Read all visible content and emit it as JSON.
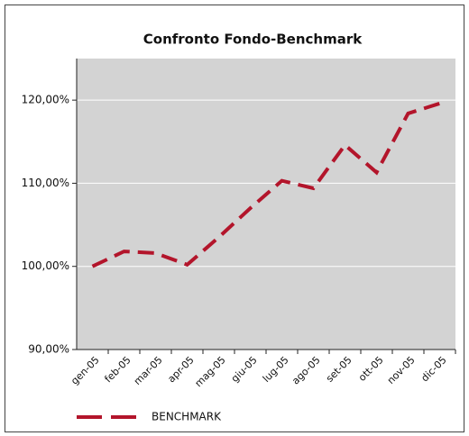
{
  "chart_data": {
    "type": "line",
    "title": "Confronto Fondo-Benchmark",
    "categories": [
      "gen-05",
      "feb-05",
      "mar-05",
      "apr-05",
      "mag-05",
      "giu-05",
      "lug-05",
      "ago-05",
      "set-05",
      "ott-05",
      "nov-05",
      "dic-05"
    ],
    "series": [
      {
        "name": "BENCHMARK",
        "color": "#b3152b",
        "values": [
          100,
          101.8,
          101.6,
          100.2,
          103.5,
          107,
          110.3,
          109.4,
          114.6,
          111.3,
          118.4,
          119.6
        ]
      }
    ],
    "ylim": [
      90,
      125
    ],
    "yticks": [
      {
        "value": 90,
        "label": "90,00%"
      },
      {
        "value": 100,
        "label": "100,00%"
      },
      {
        "value": 110,
        "label": "110,00%"
      },
      {
        "value": 120,
        "label": "120,00%"
      }
    ],
    "grid": true
  }
}
